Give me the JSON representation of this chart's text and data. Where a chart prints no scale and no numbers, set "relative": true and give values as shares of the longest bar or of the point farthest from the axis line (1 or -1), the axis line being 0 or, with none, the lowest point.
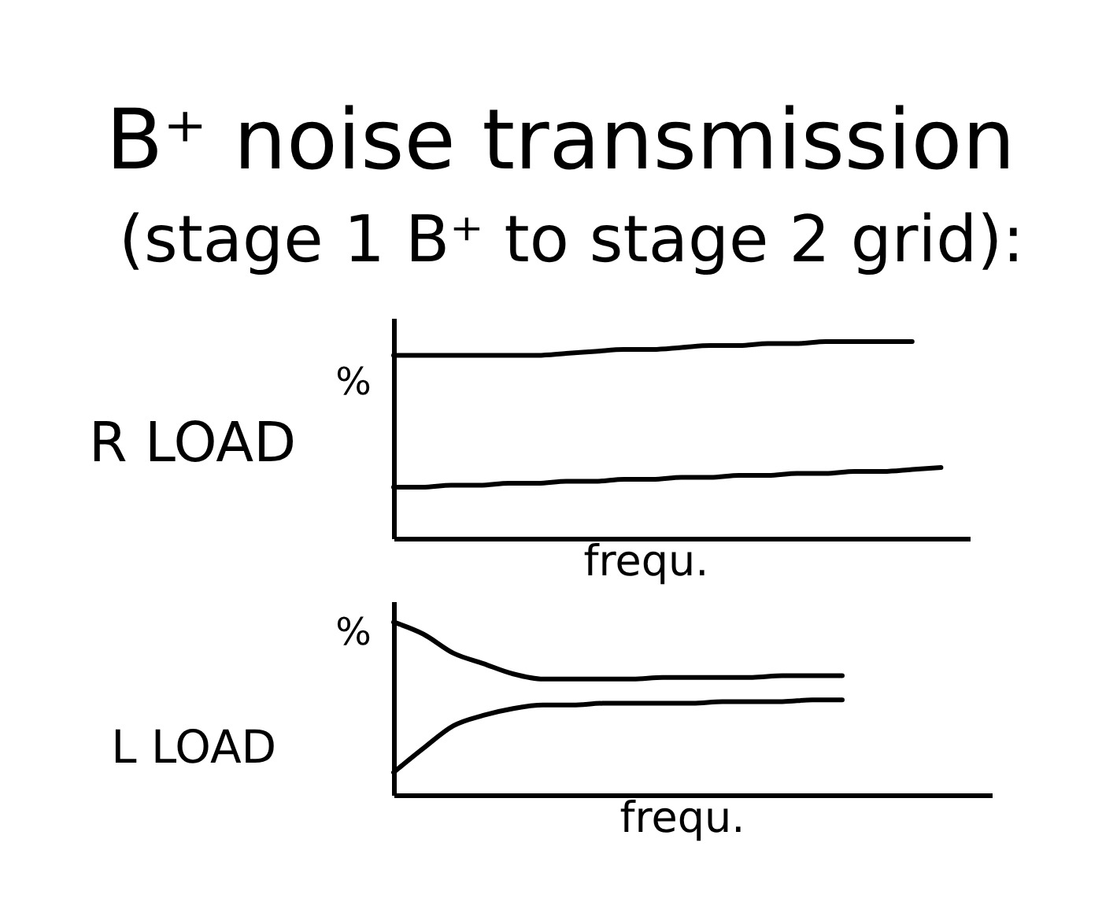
{
  "chart_data": [
    {
      "type": "other",
      "title": "B⁺ noise transmission",
      "subtitle": "(stage 1 B⁺ to stage 2 grid):"
    },
    {
      "type": "line",
      "title": "R LOAD",
      "ylabel": "%",
      "xlabel": "frequ.",
      "relative": true,
      "tick_labels": false,
      "grid": false,
      "marker": "none",
      "line_style": "solid",
      "categories": [
        null,
        null,
        null,
        null,
        null,
        null,
        null,
        null,
        null,
        null,
        null,
        null,
        null,
        null,
        null,
        null,
        null,
        null,
        null,
        null,
        null
      ],
      "series": [
        {
          "color": "#000000",
          "values": [
            0.93,
            0.93,
            0.93,
            0.93,
            0.93,
            0.93,
            0.94,
            0.95,
            0.96,
            0.96,
            0.97,
            0.98,
            0.98,
            0.99,
            0.99,
            1.0,
            1.0,
            1.0,
            1.0,
            null,
            null
          ]
        },
        {
          "color": "#000000",
          "values": [
            0.26,
            0.26,
            0.27,
            0.27,
            0.28,
            0.28,
            0.29,
            0.29,
            0.3,
            0.3,
            0.31,
            0.31,
            0.32,
            0.32,
            0.33,
            0.33,
            0.34,
            0.34,
            0.35,
            0.36,
            null
          ]
        }
      ]
    },
    {
      "type": "line",
      "title": "L LOAD",
      "ylabel": "%",
      "xlabel": "frequ.",
      "relative": true,
      "tick_labels": false,
      "grid": false,
      "marker": "none",
      "line_style": "solid",
      "categories": [
        null,
        null,
        null,
        null,
        null,
        null,
        null,
        null,
        null,
        null,
        null,
        null,
        null,
        null,
        null,
        null,
        null,
        null,
        null,
        null,
        null
      ],
      "series": [
        {
          "color": "#000000",
          "values": [
            1.0,
            0.93,
            0.82,
            0.76,
            0.7,
            0.67,
            0.67,
            0.67,
            0.67,
            0.68,
            0.68,
            0.68,
            0.68,
            0.69,
            0.69,
            0.69,
            null,
            null,
            null,
            null,
            null
          ]
        },
        {
          "color": "#000000",
          "values": [
            0.13,
            0.27,
            0.4,
            0.46,
            0.5,
            0.52,
            0.52,
            0.53,
            0.53,
            0.53,
            0.53,
            0.54,
            0.54,
            0.54,
            0.55,
            0.55,
            null,
            null,
            null,
            null,
            null
          ]
        }
      ]
    }
  ]
}
